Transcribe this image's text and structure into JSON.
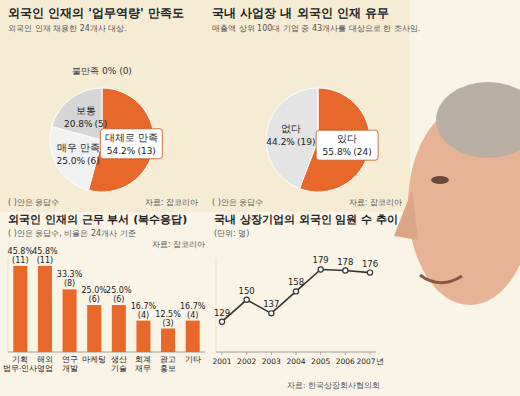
{
  "chart_data": [
    {
      "type": "pie",
      "title": "외국인 인재의 '업무역량' 만족도",
      "subtitle": "외국인 인재 채용한 24개사 대상.",
      "categories": [
        "대체로 만족",
        "매우 만족",
        "보통",
        "불만족"
      ],
      "values": [
        54.2,
        25.0,
        20.8,
        0
      ],
      "value_labels": [
        "54.2%",
        "25.0%",
        "20.8%",
        "0%"
      ],
      "count_labels": [
        "(13)",
        "(6)",
        "(5)",
        "(0)"
      ],
      "colors": [
        "#e8672b",
        "#f2f2f2",
        "#d6d6d6",
        "#999999"
      ],
      "data_labels": true,
      "note": "( )안은 응답수",
      "source": "자료: 잡코리아"
    },
    {
      "type": "pie",
      "title": "국내 사업장 내 외국인 인재 유무",
      "subtitle": "매출액 상위 100대 기업 중 43개사를 대상으로 한 조사임.",
      "categories": [
        "있다",
        "없다"
      ],
      "values": [
        55.8,
        44.2
      ],
      "value_labels": [
        "55.8%",
        "44.2%"
      ],
      "count_labels": [
        "(24)",
        "(19)"
      ],
      "colors": [
        "#e8672b",
        "#e4e4e4"
      ],
      "data_labels": true,
      "note": "( )안은 응답수",
      "source": "자료: 잡코리아"
    },
    {
      "type": "bar",
      "title": "외국인 인재의 근무 부서 (복수응답)",
      "subtitle": "( )안은 응답수, 비율은 24개사 기준",
      "source": "자료: 잡코리아",
      "categories": [
        "기획\n법무·인사",
        "해외\n영업",
        "연구\n개발",
        "마케팅",
        "생산\n기술",
        "회계\n재무",
        "광고\n홍보",
        "기타"
      ],
      "values": [
        45.8,
        45.8,
        33.3,
        25.0,
        25.0,
        16.7,
        12.5,
        16.7
      ],
      "value_labels": [
        "45.8%",
        "45.8%",
        "33.3%",
        "25.0%",
        "25.0%",
        "16.7%",
        "12.5%",
        "16.7%"
      ],
      "count_labels": [
        "(11)",
        "(11)",
        "(8)",
        "(6)",
        "(6)",
        "(4)",
        "(3)",
        "(4)"
      ],
      "color": "#e8672b",
      "ylim": [
        0,
        50
      ],
      "data_labels": true,
      "tick_labels": "x"
    },
    {
      "type": "line",
      "title": "국내 상장기업의 외국인 임원 수 추이",
      "subtitle": "(단위: 명)",
      "source": "자료: 한국상장회사협의회",
      "categories": [
        "2001",
        "2002",
        "2003",
        "2004",
        "2005",
        "2006",
        "2007년"
      ],
      "values": [
        129,
        150,
        137,
        158,
        179,
        178,
        176
      ],
      "color": "#333333",
      "marker": "circle",
      "ylim": [
        100,
        190
      ],
      "data_labels": true,
      "tick_labels": "x"
    }
  ]
}
